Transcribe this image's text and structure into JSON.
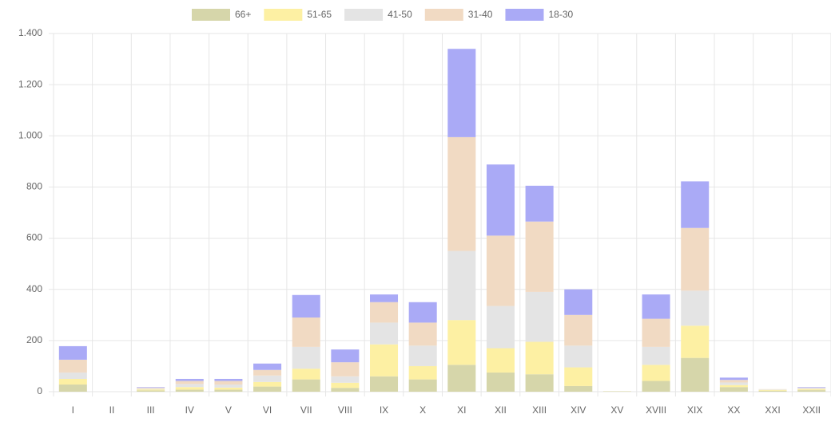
{
  "chart_data": {
    "type": "stacked-bar",
    "categories": [
      "I",
      "II",
      "III",
      "IV",
      "V",
      "VI",
      "VII",
      "VIII",
      "IX",
      "X",
      "XI",
      "XII",
      "XIII",
      "XIV",
      "XV",
      "XVIII",
      "XIX",
      "XX",
      "XXI",
      "XXII"
    ],
    "series": [
      {
        "name": "66+",
        "color": "#d6d6aa",
        "values": [
          28,
          0,
          5,
          8,
          8,
          20,
          48,
          15,
          60,
          48,
          105,
          75,
          68,
          22,
          1,
          42,
          132,
          18,
          4,
          6
        ]
      },
      {
        "name": "51-65",
        "color": "#fdf0a3",
        "values": [
          22,
          0,
          4,
          10,
          8,
          18,
          42,
          20,
          125,
          52,
          175,
          95,
          127,
          73,
          1,
          63,
          126,
          8,
          3,
          4
        ]
      },
      {
        "name": "41-50",
        "color": "#e4e4e4",
        "values": [
          25,
          0,
          4,
          12,
          12,
          25,
          85,
          25,
          85,
          80,
          270,
          165,
          195,
          85,
          1,
          70,
          137,
          10,
          2,
          4
        ]
      },
      {
        "name": "31-40",
        "color": "#f1dac3",
        "values": [
          50,
          0,
          3,
          12,
          14,
          22,
          115,
          55,
          80,
          90,
          445,
          275,
          275,
          120,
          0,
          110,
          245,
          10,
          1,
          2
        ]
      },
      {
        "name": "18-30",
        "color": "#aaaaf6",
        "values": [
          53,
          0,
          2,
          8,
          8,
          25,
          88,
          50,
          30,
          80,
          345,
          278,
          140,
          100,
          0,
          95,
          182,
          9,
          0,
          2
        ]
      }
    ],
    "ylim": [
      0,
      1400
    ],
    "yticks": [
      0,
      200,
      400,
      600,
      800,
      {
        "value": 1000,
        "label": "1.000"
      },
      {
        "value": 1200,
        "label": "1.200"
      },
      {
        "value": 1400,
        "label": "1.400"
      }
    ],
    "grid": true,
    "legend": "top"
  }
}
